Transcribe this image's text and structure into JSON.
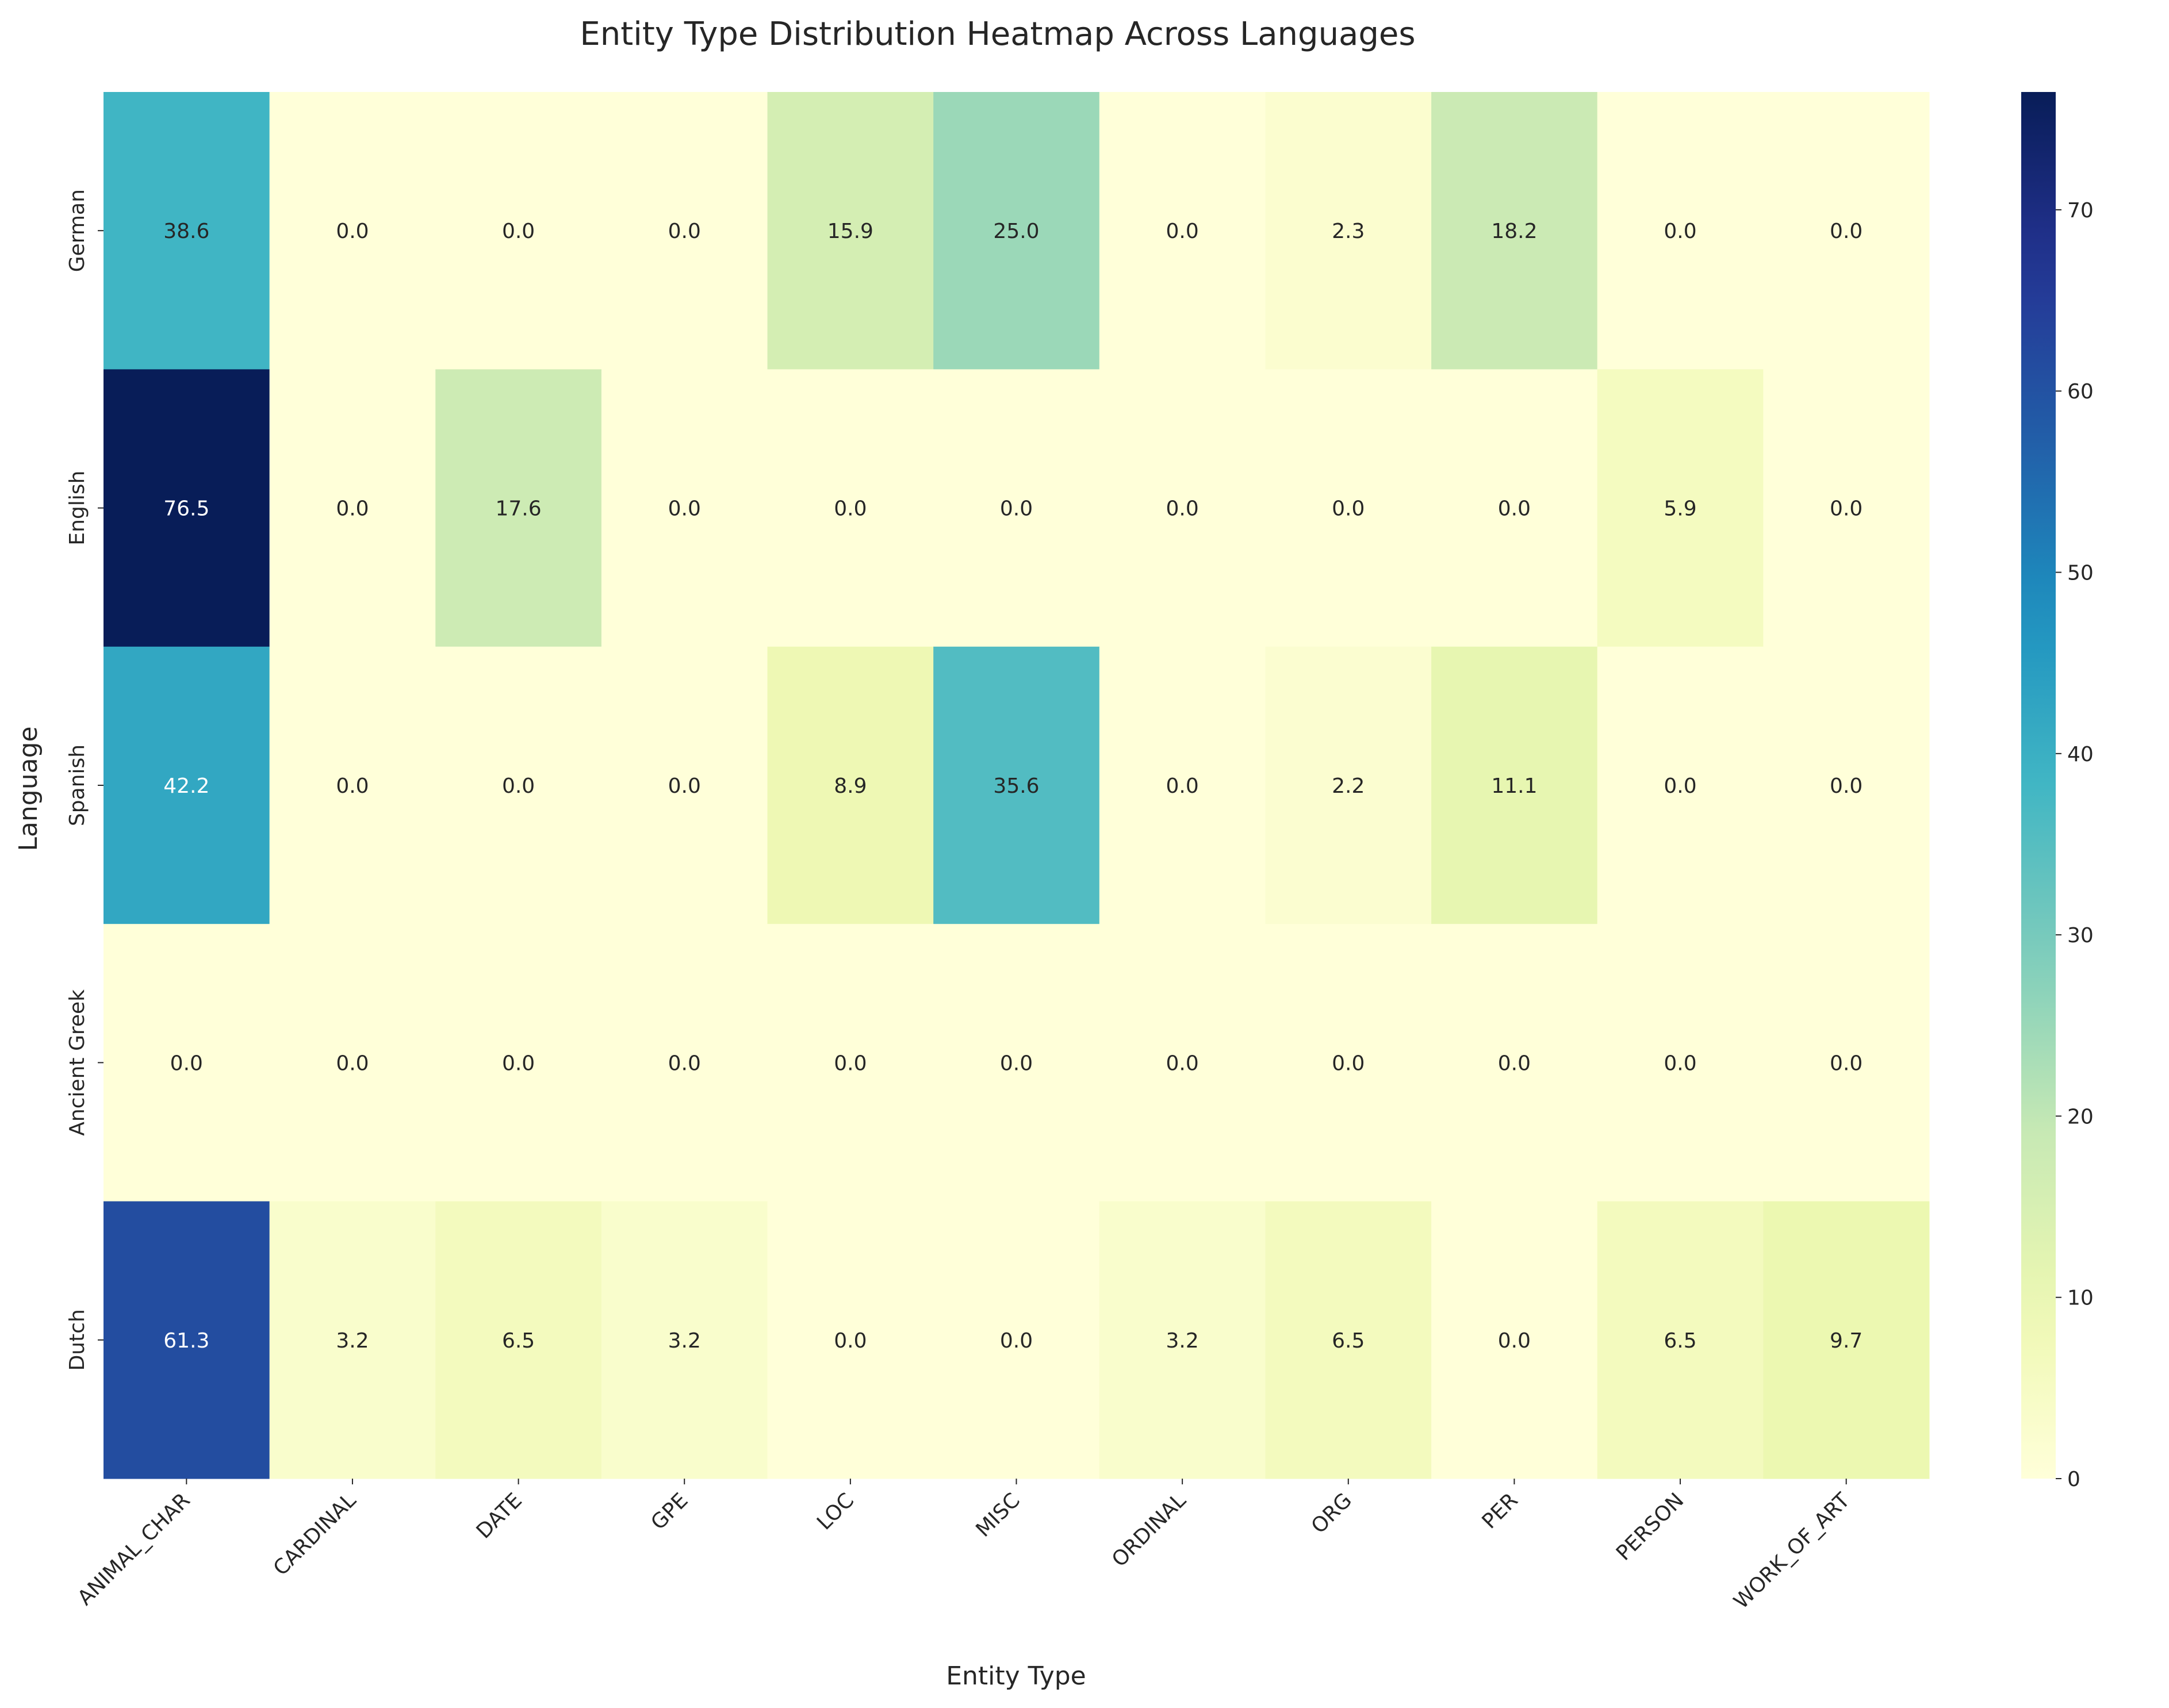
{
  "chart_data": {
    "type": "heatmap",
    "title": "Entity Type Distribution Heatmap Across Languages",
    "xlabel": "Entity Type",
    "ylabel": "Language",
    "x": [
      "ANIMAL_CHAR",
      "CARDINAL",
      "DATE",
      "GPE",
      "LOC",
      "MISC",
      "ORDINAL",
      "ORG",
      "PER",
      "PERSON",
      "WORK_OF_ART"
    ],
    "y": [
      "German",
      "English",
      "Spanish",
      "Ancient Greek",
      "Dutch"
    ],
    "values": [
      [
        38.6,
        0.0,
        0.0,
        0.0,
        15.9,
        25.0,
        0.0,
        2.3,
        18.2,
        0.0,
        0.0
      ],
      [
        76.5,
        0.0,
        17.6,
        0.0,
        0.0,
        0.0,
        0.0,
        0.0,
        0.0,
        5.9,
        0.0
      ],
      [
        42.2,
        0.0,
        0.0,
        0.0,
        8.9,
        35.6,
        0.0,
        2.2,
        11.1,
        0.0,
        0.0
      ],
      [
        0.0,
        0.0,
        0.0,
        0.0,
        0.0,
        0.0,
        0.0,
        0.0,
        0.0,
        0.0,
        0.0
      ],
      [
        61.3,
        3.2,
        6.5,
        3.2,
        0.0,
        0.0,
        3.2,
        6.5,
        0.0,
        6.5,
        9.7
      ]
    ],
    "value_format": "0.1f",
    "colormap": "YlGnBu",
    "vmin": 0,
    "vmax": 76.5,
    "colorbar_ticks": [
      0,
      10,
      20,
      30,
      40,
      50,
      60,
      70
    ],
    "grid": false
  }
}
